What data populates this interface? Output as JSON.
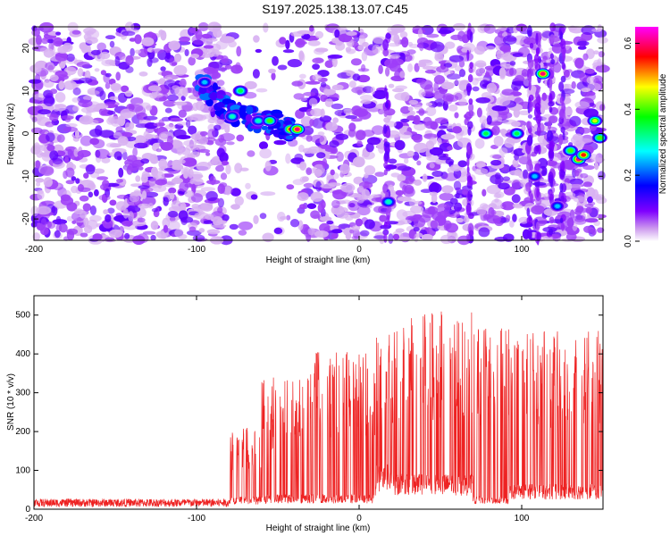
{
  "title": "S197.2025.138.13.07.C45",
  "chart_data": [
    {
      "type": "heatmap",
      "xlabel": "Height of straight line (km)",
      "ylabel": "Frequency (Hz)",
      "xlim": [
        -200,
        150
      ],
      "ylim": [
        -25,
        25
      ],
      "xticks": [
        -200,
        -100,
        0,
        100
      ],
      "yticks": [
        -20,
        -10,
        0,
        10,
        20
      ],
      "colorbar": {
        "label": "Normalized spectral amplitude",
        "range": [
          0,
          0.65
        ],
        "ticks": [
          0.0,
          0.2,
          0.4,
          0.6
        ],
        "colors": [
          "#ffffff",
          "#cc99ee",
          "#7f00ff",
          "#0000ff",
          "#00ffff",
          "#00ff00",
          "#ffff00",
          "#ff0000",
          "#ff00ff"
        ]
      },
      "features": {
        "gap_region": [
          -80,
          -36
        ],
        "diagonal_track": [
          {
            "x": -98,
            "y": 12
          },
          {
            "x": -90,
            "y": 9
          },
          {
            "x": -82,
            "y": 6
          },
          {
            "x": -76,
            "y": 4
          },
          {
            "x": -68,
            "y": 4
          },
          {
            "x": -60,
            "y": 2
          },
          {
            "x": -52,
            "y": 3
          },
          {
            "x": -44,
            "y": 1
          },
          {
            "x": -38,
            "y": 0
          }
        ],
        "hot_spots": [
          {
            "x": -95,
            "y": 12,
            "v": 0.25
          },
          {
            "x": -73,
            "y": 10,
            "v": 0.35
          },
          {
            "x": -78,
            "y": 4,
            "v": 0.3
          },
          {
            "x": -62,
            "y": 3,
            "v": 0.3
          },
          {
            "x": -55,
            "y": 3,
            "v": 0.4
          },
          {
            "x": -42,
            "y": 1,
            "v": 0.55
          },
          {
            "x": -38,
            "y": 1,
            "v": 0.6
          },
          {
            "x": 18,
            "y": -16,
            "v": 0.3
          },
          {
            "x": 78,
            "y": 0,
            "v": 0.35
          },
          {
            "x": 97,
            "y": 0,
            "v": 0.35
          },
          {
            "x": 108,
            "y": -10,
            "v": 0.25
          },
          {
            "x": 113,
            "y": 14,
            "v": 0.6
          },
          {
            "x": 122,
            "y": -17,
            "v": 0.25
          },
          {
            "x": 130,
            "y": -4,
            "v": 0.4
          },
          {
            "x": 135,
            "y": -6,
            "v": 0.6
          },
          {
            "x": 138,
            "y": -5,
            "v": 0.55
          },
          {
            "x": 145,
            "y": 3,
            "v": 0.45
          },
          {
            "x": 148,
            "y": -1,
            "v": 0.4
          }
        ]
      }
    },
    {
      "type": "line",
      "xlabel": "Height of straight line (km)",
      "ylabel": "SNR (10 * v/v)",
      "xlim": [
        -200,
        150
      ],
      "ylim": [
        0,
        550
      ],
      "xticks": [
        -200,
        -100,
        0,
        100
      ],
      "yticks": [
        0,
        100,
        200,
        300,
        400,
        500
      ],
      "color": "#ee2222",
      "segments": [
        {
          "x": [
            -200,
            -80
          ],
          "baseline": 15,
          "peak": 35
        },
        {
          "x": [
            -80,
            -60
          ],
          "baseline": 25,
          "peak": 220
        },
        {
          "x": [
            -60,
            -30
          ],
          "baseline": 30,
          "peak": 340
        },
        {
          "x": [
            -30,
            10
          ],
          "baseline": 30,
          "peak": 410
        },
        {
          "x": [
            10,
            22
          ],
          "baseline": 90,
          "peak": 460
        },
        {
          "x": [
            22,
            70
          ],
          "baseline": 70,
          "peak": 510
        },
        {
          "x": [
            70,
            92
          ],
          "baseline": 25,
          "peak": 470
        },
        {
          "x": [
            92,
            150
          ],
          "baseline": 50,
          "peak": 460
        }
      ]
    }
  ]
}
